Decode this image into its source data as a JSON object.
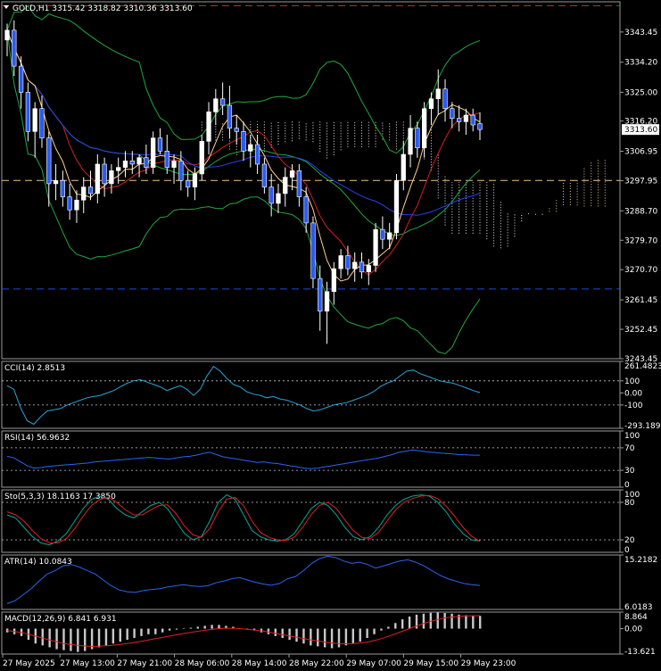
{
  "header": {
    "symbol": "GOLD,H1",
    "ohlc": "3315.42 3318.82 3310.36 3313.60"
  },
  "price_badge": "3313.60",
  "chart_data": [
    {
      "type": "candlestick",
      "panel": "main",
      "ylim": [
        3243.45,
        3352.7
      ],
      "y_ticks": [
        "3343.45",
        "3334.20",
        "3325.00",
        "3316.20",
        "3306.95",
        "3297.95",
        "3288.70",
        "3279.70",
        "3270.70",
        "3261.45",
        "3252.45",
        "3243.45"
      ],
      "horizontal_levels": [
        {
          "value": 3351.5,
          "color": "#c83232"
        },
        {
          "value": 3298.0,
          "color": "#f2c28a"
        },
        {
          "value": 3264.8,
          "color": "#1e4bd6"
        }
      ],
      "candles": [
        [
          3341,
          3346,
          3336,
          3344
        ],
        [
          3344,
          3347,
          3330,
          3333
        ],
        [
          3333,
          3336,
          3320,
          3325
        ],
        [
          3325,
          3328,
          3310,
          3313
        ],
        [
          3313,
          3322,
          3305,
          3320
        ],
        [
          3320,
          3324,
          3308,
          3311
        ],
        [
          3311,
          3313,
          3290,
          3297
        ],
        [
          3297,
          3303,
          3292,
          3298
        ],
        [
          3298,
          3301,
          3290,
          3293
        ],
        [
          3293,
          3297,
          3286,
          3289
        ],
        [
          3289,
          3295,
          3285,
          3292
        ],
        [
          3292,
          3299,
          3288,
          3296
        ],
        [
          3296,
          3301,
          3292,
          3294
        ],
        [
          3294,
          3306,
          3291,
          3303
        ],
        [
          3303,
          3305,
          3293,
          3297
        ],
        [
          3297,
          3303,
          3294,
          3301
        ],
        [
          3301,
          3305,
          3297,
          3302
        ],
        [
          3302,
          3307,
          3299,
          3304
        ],
        [
          3304,
          3307,
          3300,
          3303
        ],
        [
          3303,
          3306,
          3299,
          3305
        ],
        [
          3305,
          3309,
          3300,
          3302
        ],
        [
          3302,
          3313,
          3300,
          3311
        ],
        [
          3311,
          3314,
          3306,
          3307
        ],
        [
          3307,
          3312,
          3300,
          3302
        ],
        [
          3302,
          3306,
          3297,
          3304
        ],
        [
          3304,
          3307,
          3295,
          3298
        ],
        [
          3298,
          3301,
          3293,
          3296
        ],
        [
          3296,
          3302,
          3292,
          3300
        ],
        [
          3300,
          3312,
          3298,
          3310
        ],
        [
          3310,
          3322,
          3306,
          3319
        ],
        [
          3319,
          3326,
          3315,
          3323
        ],
        [
          3323,
          3328,
          3318,
          3321
        ],
        [
          3321,
          3327,
          3311,
          3314
        ],
        [
          3314,
          3318,
          3309,
          3313
        ],
        [
          3313,
          3316,
          3304,
          3307
        ],
        [
          3307,
          3312,
          3302,
          3309
        ],
        [
          3309,
          3312,
          3300,
          3303
        ],
        [
          3303,
          3305,
          3294,
          3296
        ],
        [
          3296,
          3300,
          3287,
          3291
        ],
        [
          3291,
          3297,
          3288,
          3294
        ],
        [
          3294,
          3302,
          3290,
          3299
        ],
        [
          3299,
          3303,
          3295,
          3301
        ],
        [
          3301,
          3303,
          3290,
          3293
        ],
        [
          3293,
          3296,
          3282,
          3285
        ],
        [
          3285,
          3287,
          3265,
          3268
        ],
        [
          3268,
          3272,
          3252,
          3258
        ],
        [
          3258,
          3267,
          3248,
          3264
        ],
        [
          3264,
          3273,
          3260,
          3271
        ],
        [
          3271,
          3277,
          3268,
          3275
        ],
        [
          3275,
          3278,
          3269,
          3271
        ],
        [
          3271,
          3276,
          3267,
          3273
        ],
        [
          3273,
          3276,
          3268,
          3270
        ],
        [
          3270,
          3274,
          3266,
          3272
        ],
        [
          3272,
          3285,
          3270,
          3283
        ],
        [
          3283,
          3287,
          3277,
          3280
        ],
        [
          3280,
          3285,
          3277,
          3282
        ],
        [
          3282,
          3300,
          3280,
          3298
        ],
        [
          3298,
          3310,
          3295,
          3306
        ],
        [
          3306,
          3318,
          3302,
          3314
        ],
        [
          3314,
          3316,
          3305,
          3308
        ],
        [
          3308,
          3322,
          3305,
          3320
        ],
        [
          3320,
          3325,
          3315,
          3323
        ],
        [
          3323,
          3332,
          3318,
          3326
        ],
        [
          3326,
          3329,
          3316,
          3320
        ],
        [
          3320,
          3322,
          3314,
          3317
        ],
        [
          3317,
          3321,
          3313,
          3316
        ],
        [
          3316,
          3320,
          3312,
          3318
        ],
        [
          3318,
          3320,
          3313,
          3315
        ],
        [
          3315.42,
          3318.82,
          3310.36,
          3313.6
        ]
      ],
      "x_labels": [
        "27 May 2025",
        "27 May 13:00",
        "27 May 21:00",
        "28 May 06:00",
        "28 May 14:00",
        "28 May 22:00",
        "29 May 07:00",
        "29 May 15:00",
        "29 May 23:00"
      ]
    },
    {
      "type": "line",
      "panel": "cci",
      "label": "CCI(14) 2.8513",
      "ylim": [
        -293.1895,
        261.4823
      ],
      "y_ticks": [
        "261.4823",
        "100",
        "0.00",
        "-100",
        "-293.1895"
      ],
      "levels": [
        100,
        -100
      ],
      "values": [
        60,
        30,
        -120,
        -230,
        -260,
        -200,
        -150,
        -140,
        -130,
        -100,
        -80,
        -60,
        -40,
        -30,
        -20,
        0,
        20,
        50,
        80,
        100,
        110,
        90,
        70,
        50,
        20,
        40,
        60,
        30,
        -20,
        30,
        140,
        220,
        180,
        120,
        70,
        50,
        10,
        -10,
        -20,
        -40,
        -30,
        -50,
        -60,
        -80,
        -100,
        -130,
        -150,
        -140,
        -120,
        -100,
        -90,
        -80,
        -60,
        -40,
        -20,
        10,
        50,
        80,
        100,
        140,
        180,
        190,
        160,
        140,
        120,
        100,
        90,
        80,
        60,
        40,
        20,
        2.85
      ]
    },
    {
      "type": "line",
      "panel": "rsi",
      "label": "RSI(14) 56.9632",
      "ylim": [
        0,
        100
      ],
      "y_ticks": [
        "100",
        "70",
        "30",
        "0"
      ],
      "levels": [
        70,
        30
      ],
      "values": [
        55,
        52,
        45,
        38,
        34,
        35,
        37,
        38,
        39,
        40,
        41,
        42,
        43,
        45,
        46,
        47,
        48,
        49,
        50,
        51,
        52,
        53,
        52,
        51,
        50,
        52,
        54,
        55,
        57,
        60,
        62,
        58,
        54,
        52,
        50,
        48,
        46,
        44,
        45,
        43,
        42,
        40,
        38,
        36,
        34,
        33,
        34,
        36,
        38,
        40,
        42,
        44,
        46,
        48,
        50,
        52,
        55,
        58,
        62,
        64,
        66,
        65,
        63,
        62,
        61,
        60,
        59,
        58,
        57.5,
        57,
        56.96
      ]
    },
    {
      "type": "line",
      "panel": "stoch",
      "label": "Sto(5,3,3) 18.1163 17.3850",
      "ylim": [
        0,
        100
      ],
      "y_ticks": [
        "100",
        "80",
        "20",
        "0"
      ],
      "levels": [
        80,
        20
      ],
      "series": [
        {
          "name": "18.1163",
          "color": "#00a896",
          "values": [
            60,
            55,
            40,
            25,
            15,
            12,
            18,
            30,
            50,
            70,
            85,
            90,
            85,
            70,
            60,
            55,
            65,
            75,
            80,
            70,
            50,
            30,
            20,
            25,
            50,
            80,
            92,
            85,
            60,
            35,
            25,
            20,
            18,
            20,
            30,
            50,
            70,
            80,
            75,
            60,
            40,
            25,
            20,
            25,
            40,
            60,
            75,
            85,
            90,
            92,
            90,
            80,
            65,
            45,
            30,
            20,
            18.1
          ]
        },
        {
          "name": "17.3850",
          "color": "#e02020",
          "values": [
            65,
            60,
            50,
            35,
            22,
            15,
            15,
            22,
            38,
            58,
            75,
            85,
            88,
            80,
            68,
            60,
            60,
            68,
            75,
            76,
            62,
            42,
            28,
            24,
            38,
            65,
            85,
            88,
            75,
            50,
            32,
            24,
            20,
            19,
            24,
            40,
            60,
            75,
            80,
            70,
            52,
            35,
            24,
            22,
            32,
            50,
            68,
            80,
            86,
            90,
            91,
            86,
            74,
            58,
            40,
            26,
            17.4
          ]
        }
      ]
    },
    {
      "type": "line",
      "panel": "atr",
      "label": "ATR(14) 10.0843",
      "ylim": [
        6.0183,
        15.2182
      ],
      "y_ticks": [
        "15.2182",
        "6.0183"
      ],
      "values": [
        7.0,
        7.5,
        8.5,
        9.5,
        10.8,
        12.0,
        12.6,
        13.4,
        13.6,
        13.2,
        12.6,
        12.0,
        11.0,
        10.0,
        9.3,
        9.0,
        8.9,
        9.2,
        9.4,
        9.5,
        9.8,
        10.0,
        10.2,
        10.0,
        9.9,
        10.0,
        10.5,
        10.8,
        11.2,
        11.4,
        11.0,
        10.6,
        10.3,
        10.1,
        10.4,
        11.2,
        11.6,
        12.6,
        13.8,
        14.6,
        15.0,
        14.8,
        14.2,
        13.8,
        14.0,
        13.6,
        13.0,
        13.4,
        13.8,
        14.2,
        14.4,
        14.0,
        13.4,
        12.6,
        11.8,
        11.2,
        10.8,
        10.4,
        10.2,
        10.08
      ]
    },
    {
      "type": "bar",
      "panel": "macd",
      "label": "MACD(12,26,9) 6.841 6.931",
      "ylim": [
        -13.621,
        8.864
      ],
      "y_ticks": [
        "8.864",
        "0.00",
        "-13.621"
      ],
      "values": [
        -2,
        -3,
        -4,
        -6,
        -8,
        -9,
        -10,
        -11,
        -11.5,
        -12,
        -12.5,
        -12,
        -11,
        -10,
        -9,
        -8,
        -7,
        -6,
        -5,
        -4,
        -3,
        -3,
        -2,
        -1,
        -0.5,
        0,
        0.5,
        1,
        1.5,
        2,
        2,
        1.5,
        1,
        0,
        -0.5,
        -1,
        -2,
        -3,
        -4,
        -5,
        -6,
        -7,
        -8,
        -9,
        -9.5,
        -10,
        -10.5,
        -10,
        -9,
        -8,
        -7,
        -5,
        -3,
        -1,
        1,
        3,
        5,
        6.5,
        7.5,
        8,
        8.5,
        8.7,
        8.4,
        8,
        7.5,
        7.2,
        6.9,
        6.841
      ],
      "signal": [
        -1,
        -1.5,
        -2,
        -3,
        -4,
        -5,
        -6,
        -7,
        -8,
        -8.5,
        -9,
        -9.3,
        -9.5,
        -9.4,
        -9.2,
        -8.9,
        -8.5,
        -8,
        -7.4,
        -6.8,
        -6.1,
        -5.4,
        -4.7,
        -4,
        -3.3,
        -2.6,
        -2,
        -1.4,
        -0.9,
        -0.4,
        0,
        0.2,
        0.2,
        0,
        -0.3,
        -0.7,
        -1.2,
        -1.8,
        -2.5,
        -3.2,
        -3.9,
        -4.6,
        -5.3,
        -6,
        -6.6,
        -7.2,
        -7.7,
        -8,
        -8.1,
        -8,
        -7.8,
        -7.2,
        -6.4,
        -5.4,
        -4.2,
        -2.8,
        -1.4,
        0,
        1.4,
        2.7,
        3.9,
        4.9,
        5.7,
        6.2,
        6.6,
        6.8,
        6.9,
        6.931
      ]
    }
  ]
}
